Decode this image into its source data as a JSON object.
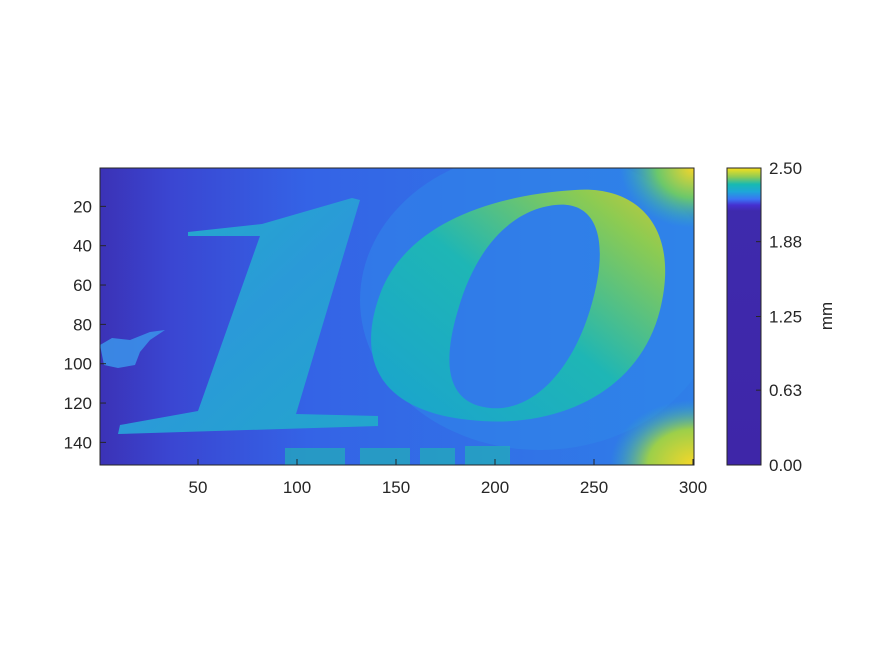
{
  "chart_data": {
    "type": "heatmap",
    "title": "",
    "xlabel": "",
    "ylabel": "",
    "x_ticks": [
      50,
      100,
      150,
      200,
      250,
      300
    ],
    "y_ticks": [
      20,
      40,
      60,
      80,
      100,
      120,
      140
    ],
    "xlim": [
      1,
      300
    ],
    "ylim": [
      1,
      151
    ],
    "y_direction": "reverse",
    "colormap": "parula",
    "colorbar": {
      "label": "mm",
      "ticks": [
        "0.00",
        "0.63",
        "1.25",
        "1.88",
        "2.50"
      ],
      "range": [
        0,
        2.5
      ],
      "placement": "right"
    },
    "image_content": {
      "depicted_numerals": "10",
      "partial_text": "EURO",
      "background_level_mm": 2.25,
      "numeral_level_mm_range": [
        2.3,
        2.45
      ],
      "corner_max_mm": 2.5
    },
    "colors": {
      "dark_blue": "#3b34b8",
      "blue": "#3466e8",
      "light_blue": "#2f86ea",
      "teal": "#1fb3b8",
      "green": "#7cc95a",
      "yellow": "#f2d02b"
    }
  }
}
